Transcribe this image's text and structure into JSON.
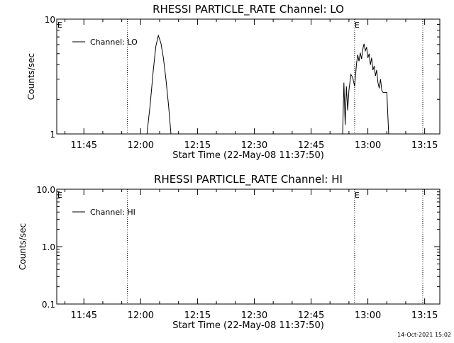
{
  "chart_data": [
    {
      "type": "line",
      "title": "RHESSI PARTICLE_RATE Channel: LO",
      "xlabel": "Start Time (22-May-08 11:37:50)",
      "ylabel": "Counts/sec",
      "y_scale": "log",
      "ylim": [
        1,
        10
      ],
      "yticks": [
        "1",
        "10"
      ],
      "x_ticks": [
        "11:45",
        "12:00",
        "12:15",
        "12:30",
        "12:45",
        "13:00",
        "13:15"
      ],
      "xlim": [
        "11:37:50",
        "13:19:00"
      ],
      "legend": {
        "label": "Channel: LO",
        "position": "top-left"
      },
      "markers": [
        {
          "label": "E",
          "time": "11:38:00",
          "line": false
        },
        {
          "label": "",
          "time": "11:56:30",
          "line": true
        },
        {
          "label": "E",
          "time": "12:56:30",
          "line": true
        },
        {
          "label": "",
          "time": "13:14:30",
          "line": true
        }
      ],
      "series": [
        {
          "name": "Channel: LO",
          "segments": [
            [
              [
                "12:01:40",
                1.0
              ],
              [
                "12:02:30",
                1.8
              ],
              [
                "12:03:20",
                3.6
              ],
              [
                "12:04:00",
                5.8
              ],
              [
                "12:04:40",
                7.2
              ],
              [
                "12:05:20",
                6.2
              ],
              [
                "12:06:00",
                4.6
              ],
              [
                "12:06:40",
                3.0
              ],
              [
                "12:07:20",
                1.8
              ],
              [
                "12:08:00",
                1.0
              ]
            ],
            [
              [
                "12:53:20",
                1.0
              ],
              [
                "12:53:40",
                2.8
              ],
              [
                "12:54:00",
                1.2
              ],
              [
                "12:54:20",
                2.6
              ],
              [
                "12:54:40",
                1.6
              ],
              [
                "12:55:00",
                2.4
              ],
              [
                "12:55:30",
                3.3
              ],
              [
                "12:56:00",
                3.1
              ],
              [
                "12:56:30",
                2.6
              ],
              [
                "12:57:00",
                4.1
              ],
              [
                "12:57:20",
                4.9
              ],
              [
                "12:57:40",
                4.3
              ],
              [
                "12:58:00",
                5.1
              ],
              [
                "12:58:20",
                4.5
              ],
              [
                "12:58:40",
                5.5
              ],
              [
                "12:59:00",
                6.1
              ],
              [
                "12:59:20",
                5.3
              ],
              [
                "12:59:40",
                5.7
              ],
              [
                "13:00:00",
                4.6
              ],
              [
                "13:00:20",
                5.0
              ],
              [
                "13:00:40",
                4.0
              ],
              [
                "13:01:00",
                4.6
              ],
              [
                "13:01:20",
                3.6
              ],
              [
                "13:01:40",
                3.9
              ],
              [
                "13:02:00",
                3.2
              ],
              [
                "13:02:20",
                3.6
              ],
              [
                "13:02:40",
                2.8
              ],
              [
                "13:03:00",
                2.5
              ],
              [
                "13:03:20",
                3.0
              ],
              [
                "13:03:40",
                2.4
              ],
              [
                "13:04:00",
                2.3
              ],
              [
                "13:04:30",
                2.3
              ],
              [
                "13:05:00",
                2.3
              ],
              [
                "13:05:30",
                1.0
              ]
            ]
          ]
        }
      ]
    },
    {
      "type": "line",
      "title": "RHESSI PARTICLE_RATE Channel: HI",
      "xlabel": "Start Time (22-May-08 11:37:50)",
      "ylabel": "Counts/sec",
      "y_scale": "log",
      "ylim": [
        0.1,
        10
      ],
      "yticks": [
        "0.1",
        "1.0",
        "10.0"
      ],
      "x_ticks": [
        "11:45",
        "12:00",
        "12:15",
        "12:30",
        "12:45",
        "13:00",
        "13:15"
      ],
      "xlim": [
        "11:37:50",
        "13:19:00"
      ],
      "legend": {
        "label": "Channel: HI",
        "position": "top-left"
      },
      "markers": [
        {
          "label": "E",
          "time": "11:38:00",
          "line": false
        },
        {
          "label": "",
          "time": "11:56:30",
          "line": true
        },
        {
          "label": "E",
          "time": "12:56:30",
          "line": true
        },
        {
          "label": "",
          "time": "13:14:30",
          "line": true
        }
      ],
      "series": [
        {
          "name": "Channel: HI",
          "segments": []
        }
      ]
    }
  ],
  "footer": {
    "timestamp": "14-Oct-2021 15:02"
  }
}
